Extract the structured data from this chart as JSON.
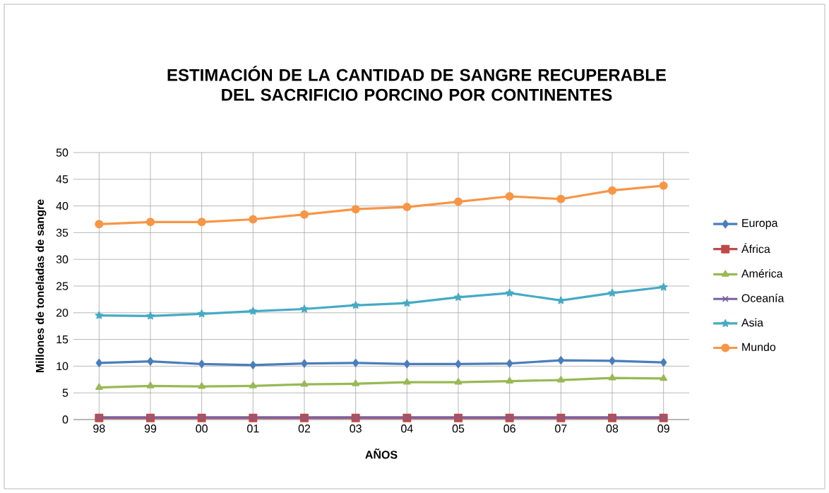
{
  "chart_data": {
    "type": "line",
    "title": "ESTIMACIÓN DE LA CANTIDAD DE SANGRE RECUPERABLE DEL SACRIFICIO PORCINO POR CONTINENTES",
    "xlabel": "AÑOS",
    "ylabel": "Millones de toneladas de sangre",
    "categories": [
      "98",
      "99",
      "00",
      "01",
      "02",
      "03",
      "04",
      "05",
      "06",
      "07",
      "08",
      "09"
    ],
    "ylim": [
      0,
      50
    ],
    "yticks": [
      0,
      5,
      10,
      15,
      20,
      25,
      30,
      35,
      40,
      45,
      50
    ],
    "grid": true,
    "legend": "right",
    "series": [
      {
        "name": "Europa",
        "color": "#4a7ebb",
        "marker": "diamond",
        "values": [
          10.6,
          10.9,
          10.4,
          10.2,
          10.5,
          10.6,
          10.4,
          10.4,
          10.5,
          11.1,
          11.0,
          10.7
        ]
      },
      {
        "name": "África",
        "color": "#be4b48",
        "marker": "square",
        "values": [
          0.3,
          0.3,
          0.3,
          0.3,
          0.3,
          0.3,
          0.3,
          0.3,
          0.3,
          0.3,
          0.3,
          0.3
        ]
      },
      {
        "name": "América",
        "color": "#98b954",
        "marker": "triangle",
        "values": [
          6.0,
          6.3,
          6.2,
          6.3,
          6.6,
          6.7,
          7.0,
          7.0,
          7.2,
          7.4,
          7.8,
          7.7
        ]
      },
      {
        "name": "Oceanía",
        "color": "#7d60a0",
        "marker": "cross",
        "values": [
          0.4,
          0.4,
          0.4,
          0.4,
          0.4,
          0.4,
          0.4,
          0.4,
          0.4,
          0.4,
          0.4,
          0.4
        ]
      },
      {
        "name": "Asia",
        "color": "#46aac5",
        "marker": "star",
        "values": [
          19.5,
          19.4,
          19.8,
          20.3,
          20.7,
          21.4,
          21.8,
          22.9,
          23.7,
          22.3,
          23.7,
          24.8
        ]
      },
      {
        "name": "Mundo",
        "color": "#f79646",
        "marker": "circle",
        "values": [
          36.6,
          37.0,
          37.0,
          37.5,
          38.4,
          39.4,
          39.8,
          40.8,
          41.8,
          41.3,
          42.9,
          43.8
        ]
      }
    ]
  }
}
